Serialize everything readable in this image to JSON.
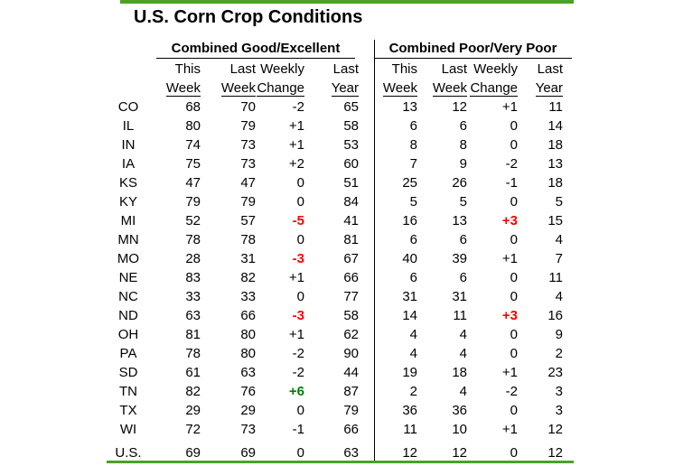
{
  "title": "U.S. Corn Crop Conditions",
  "colors": {
    "accent_green": "#4AA226",
    "change_red": "#FF0000",
    "change_green": "#008000",
    "text": "#000000",
    "background": "#FFFFFF"
  },
  "chart_data": {
    "type": "table",
    "title": "U.S. Corn Crop Conditions",
    "sections": [
      {
        "label": "Combined Good/Excellent",
        "key": "good"
      },
      {
        "label": "Combined Poor/Very Poor",
        "key": "poor"
      }
    ],
    "column_headers_line1": [
      "This",
      "Last",
      "Weekly",
      "Last"
    ],
    "column_headers_line2": [
      "Week",
      "Week",
      "Change",
      "Year"
    ],
    "rows": [
      {
        "state": "CO",
        "good": {
          "this_week": "68",
          "last_week": "70",
          "weekly_change": "-2",
          "last_year": "65",
          "change_color": "black"
        },
        "poor": {
          "this_week": "13",
          "last_week": "12",
          "weekly_change": "+1",
          "last_year": "11",
          "change_color": "black"
        }
      },
      {
        "state": "IL",
        "good": {
          "this_week": "80",
          "last_week": "79",
          "weekly_change": "+1",
          "last_year": "58",
          "change_color": "black"
        },
        "poor": {
          "this_week": "6",
          "last_week": "6",
          "weekly_change": "0",
          "last_year": "14",
          "change_color": "black"
        }
      },
      {
        "state": "IN",
        "good": {
          "this_week": "74",
          "last_week": "73",
          "weekly_change": "+1",
          "last_year": "53",
          "change_color": "black"
        },
        "poor": {
          "this_week": "8",
          "last_week": "8",
          "weekly_change": "0",
          "last_year": "18",
          "change_color": "black"
        }
      },
      {
        "state": "IA",
        "good": {
          "this_week": "75",
          "last_week": "73",
          "weekly_change": "+2",
          "last_year": "60",
          "change_color": "black"
        },
        "poor": {
          "this_week": "7",
          "last_week": "9",
          "weekly_change": "-2",
          "last_year": "13",
          "change_color": "black"
        }
      },
      {
        "state": "KS",
        "good": {
          "this_week": "47",
          "last_week": "47",
          "weekly_change": "0",
          "last_year": "51",
          "change_color": "black"
        },
        "poor": {
          "this_week": "25",
          "last_week": "26",
          "weekly_change": "-1",
          "last_year": "18",
          "change_color": "black"
        }
      },
      {
        "state": "KY",
        "good": {
          "this_week": "79",
          "last_week": "79",
          "weekly_change": "0",
          "last_year": "84",
          "change_color": "black"
        },
        "poor": {
          "this_week": "5",
          "last_week": "5",
          "weekly_change": "0",
          "last_year": "5",
          "change_color": "black"
        }
      },
      {
        "state": "MI",
        "good": {
          "this_week": "52",
          "last_week": "57",
          "weekly_change": "-5",
          "last_year": "41",
          "change_color": "red"
        },
        "poor": {
          "this_week": "16",
          "last_week": "13",
          "weekly_change": "+3",
          "last_year": "15",
          "change_color": "red"
        }
      },
      {
        "state": "MN",
        "good": {
          "this_week": "78",
          "last_week": "78",
          "weekly_change": "0",
          "last_year": "81",
          "change_color": "black"
        },
        "poor": {
          "this_week": "6",
          "last_week": "6",
          "weekly_change": "0",
          "last_year": "4",
          "change_color": "black"
        }
      },
      {
        "state": "MO",
        "good": {
          "this_week": "28",
          "last_week": "31",
          "weekly_change": "-3",
          "last_year": "67",
          "change_color": "red"
        },
        "poor": {
          "this_week": "40",
          "last_week": "39",
          "weekly_change": "+1",
          "last_year": "7",
          "change_color": "black"
        }
      },
      {
        "state": "NE",
        "good": {
          "this_week": "83",
          "last_week": "82",
          "weekly_change": "+1",
          "last_year": "66",
          "change_color": "black"
        },
        "poor": {
          "this_week": "6",
          "last_week": "6",
          "weekly_change": "0",
          "last_year": "11",
          "change_color": "black"
        }
      },
      {
        "state": "NC",
        "good": {
          "this_week": "33",
          "last_week": "33",
          "weekly_change": "0",
          "last_year": "77",
          "change_color": "black"
        },
        "poor": {
          "this_week": "31",
          "last_week": "31",
          "weekly_change": "0",
          "last_year": "4",
          "change_color": "black"
        }
      },
      {
        "state": "ND",
        "good": {
          "this_week": "63",
          "last_week": "66",
          "weekly_change": "-3",
          "last_year": "58",
          "change_color": "red"
        },
        "poor": {
          "this_week": "14",
          "last_week": "11",
          "weekly_change": "+3",
          "last_year": "16",
          "change_color": "red"
        }
      },
      {
        "state": "OH",
        "good": {
          "this_week": "81",
          "last_week": "80",
          "weekly_change": "+1",
          "last_year": "62",
          "change_color": "black"
        },
        "poor": {
          "this_week": "4",
          "last_week": "4",
          "weekly_change": "0",
          "last_year": "9",
          "change_color": "black"
        }
      },
      {
        "state": "PA",
        "good": {
          "this_week": "78",
          "last_week": "80",
          "weekly_change": "-2",
          "last_year": "90",
          "change_color": "black"
        },
        "poor": {
          "this_week": "4",
          "last_week": "4",
          "weekly_change": "0",
          "last_year": "2",
          "change_color": "black"
        }
      },
      {
        "state": "SD",
        "good": {
          "this_week": "61",
          "last_week": "63",
          "weekly_change": "-2",
          "last_year": "44",
          "change_color": "black"
        },
        "poor": {
          "this_week": "19",
          "last_week": "18",
          "weekly_change": "+1",
          "last_year": "23",
          "change_color": "black"
        }
      },
      {
        "state": "TN",
        "good": {
          "this_week": "82",
          "last_week": "76",
          "weekly_change": "+6",
          "last_year": "87",
          "change_color": "green"
        },
        "poor": {
          "this_week": "2",
          "last_week": "4",
          "weekly_change": "-2",
          "last_year": "3",
          "change_color": "black"
        }
      },
      {
        "state": "TX",
        "good": {
          "this_week": "29",
          "last_week": "29",
          "weekly_change": "0",
          "last_year": "79",
          "change_color": "black"
        },
        "poor": {
          "this_week": "36",
          "last_week": "36",
          "weekly_change": "0",
          "last_year": "3",
          "change_color": "black"
        }
      },
      {
        "state": "WI",
        "good": {
          "this_week": "72",
          "last_week": "73",
          "weekly_change": "-1",
          "last_year": "66",
          "change_color": "black"
        },
        "poor": {
          "this_week": "11",
          "last_week": "10",
          "weekly_change": "+1",
          "last_year": "12",
          "change_color": "black"
        }
      }
    ],
    "total_row": {
      "state": "U.S.",
      "good": {
        "this_week": "69",
        "last_week": "69",
        "weekly_change": "0",
        "last_year": "63",
        "change_color": "black"
      },
      "poor": {
        "this_week": "12",
        "last_week": "12",
        "weekly_change": "0",
        "last_year": "12",
        "change_color": "black"
      }
    }
  }
}
